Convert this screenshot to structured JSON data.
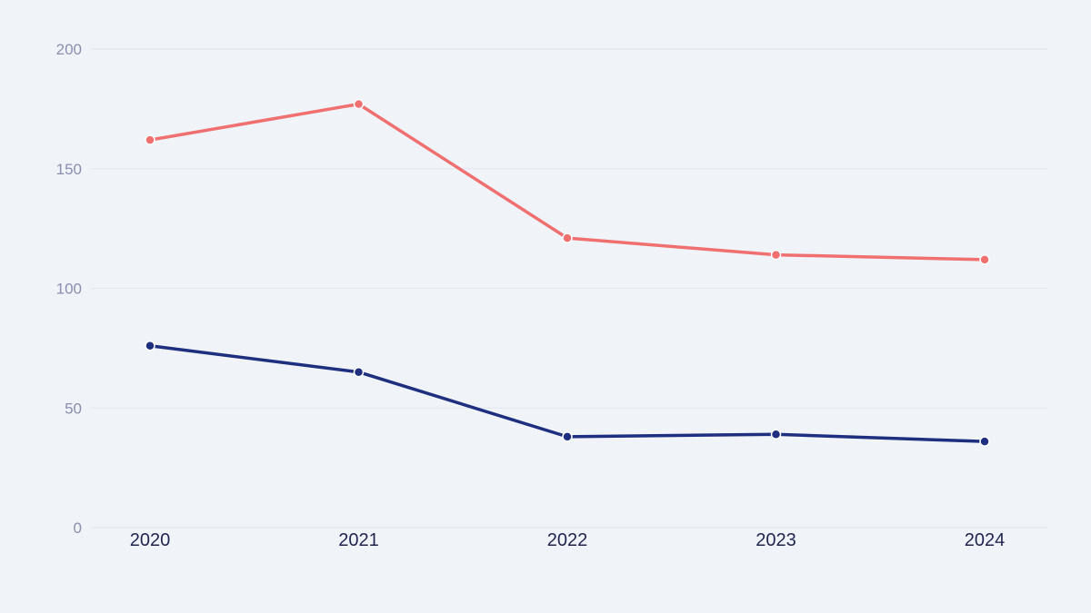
{
  "chart_data": {
    "type": "line",
    "title": "",
    "xlabel": "",
    "ylabel": "",
    "categories": [
      "2020",
      "2021",
      "2022",
      "2023",
      "2024"
    ],
    "ylim": [
      0,
      200
    ],
    "yticks": [
      0,
      50,
      100,
      150,
      200
    ],
    "grid": true,
    "legend": "none",
    "series": [
      {
        "color": "#f07070",
        "values": [
          162,
          177,
          121,
          114,
          112
        ]
      },
      {
        "color": "#1e2f80",
        "values": [
          76,
          65,
          38,
          39,
          36
        ]
      }
    ]
  }
}
